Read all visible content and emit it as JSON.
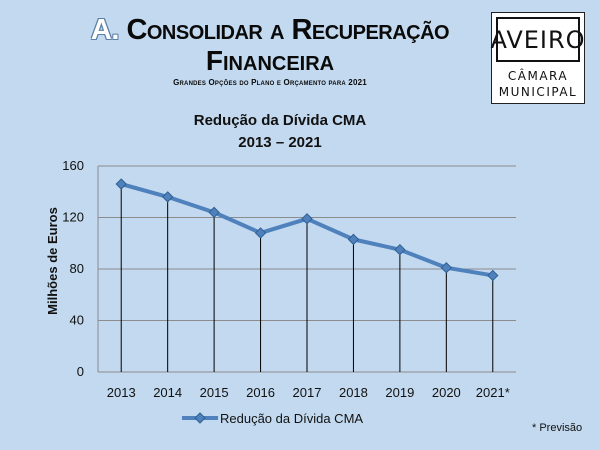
{
  "header": {
    "title_letter": "A.",
    "title_line1": "Consolidar a Recuperação",
    "title_line2": "Financeira",
    "subtitle": "Grandes Opções do Plano e Orçamento para 2021"
  },
  "logo": {
    "name": "AVEIRO",
    "line1": "CÂMARA",
    "line2": "MUNICIPAL"
  },
  "footnote": "* Previsão",
  "chart_data": {
    "type": "line",
    "title": "Redução da Dívida CMA",
    "subtitle": "2013 – 2021",
    "xlabel": "",
    "ylabel": "Milhões de Euros",
    "categories": [
      "2013",
      "2014",
      "2015",
      "2016",
      "2017",
      "2018",
      "2019",
      "2020",
      "2021*"
    ],
    "series": [
      {
        "name": "Redução da Dívida CMA",
        "values": [
          146,
          136,
          124,
          108,
          119,
          103,
          95,
          81,
          75
        ],
        "color": "#4f81bd"
      }
    ],
    "ylim": [
      0,
      160
    ],
    "yticks": [
      0,
      40,
      80,
      120,
      160
    ],
    "grid": true,
    "drop_lines": true,
    "legend_position": "bottom"
  }
}
